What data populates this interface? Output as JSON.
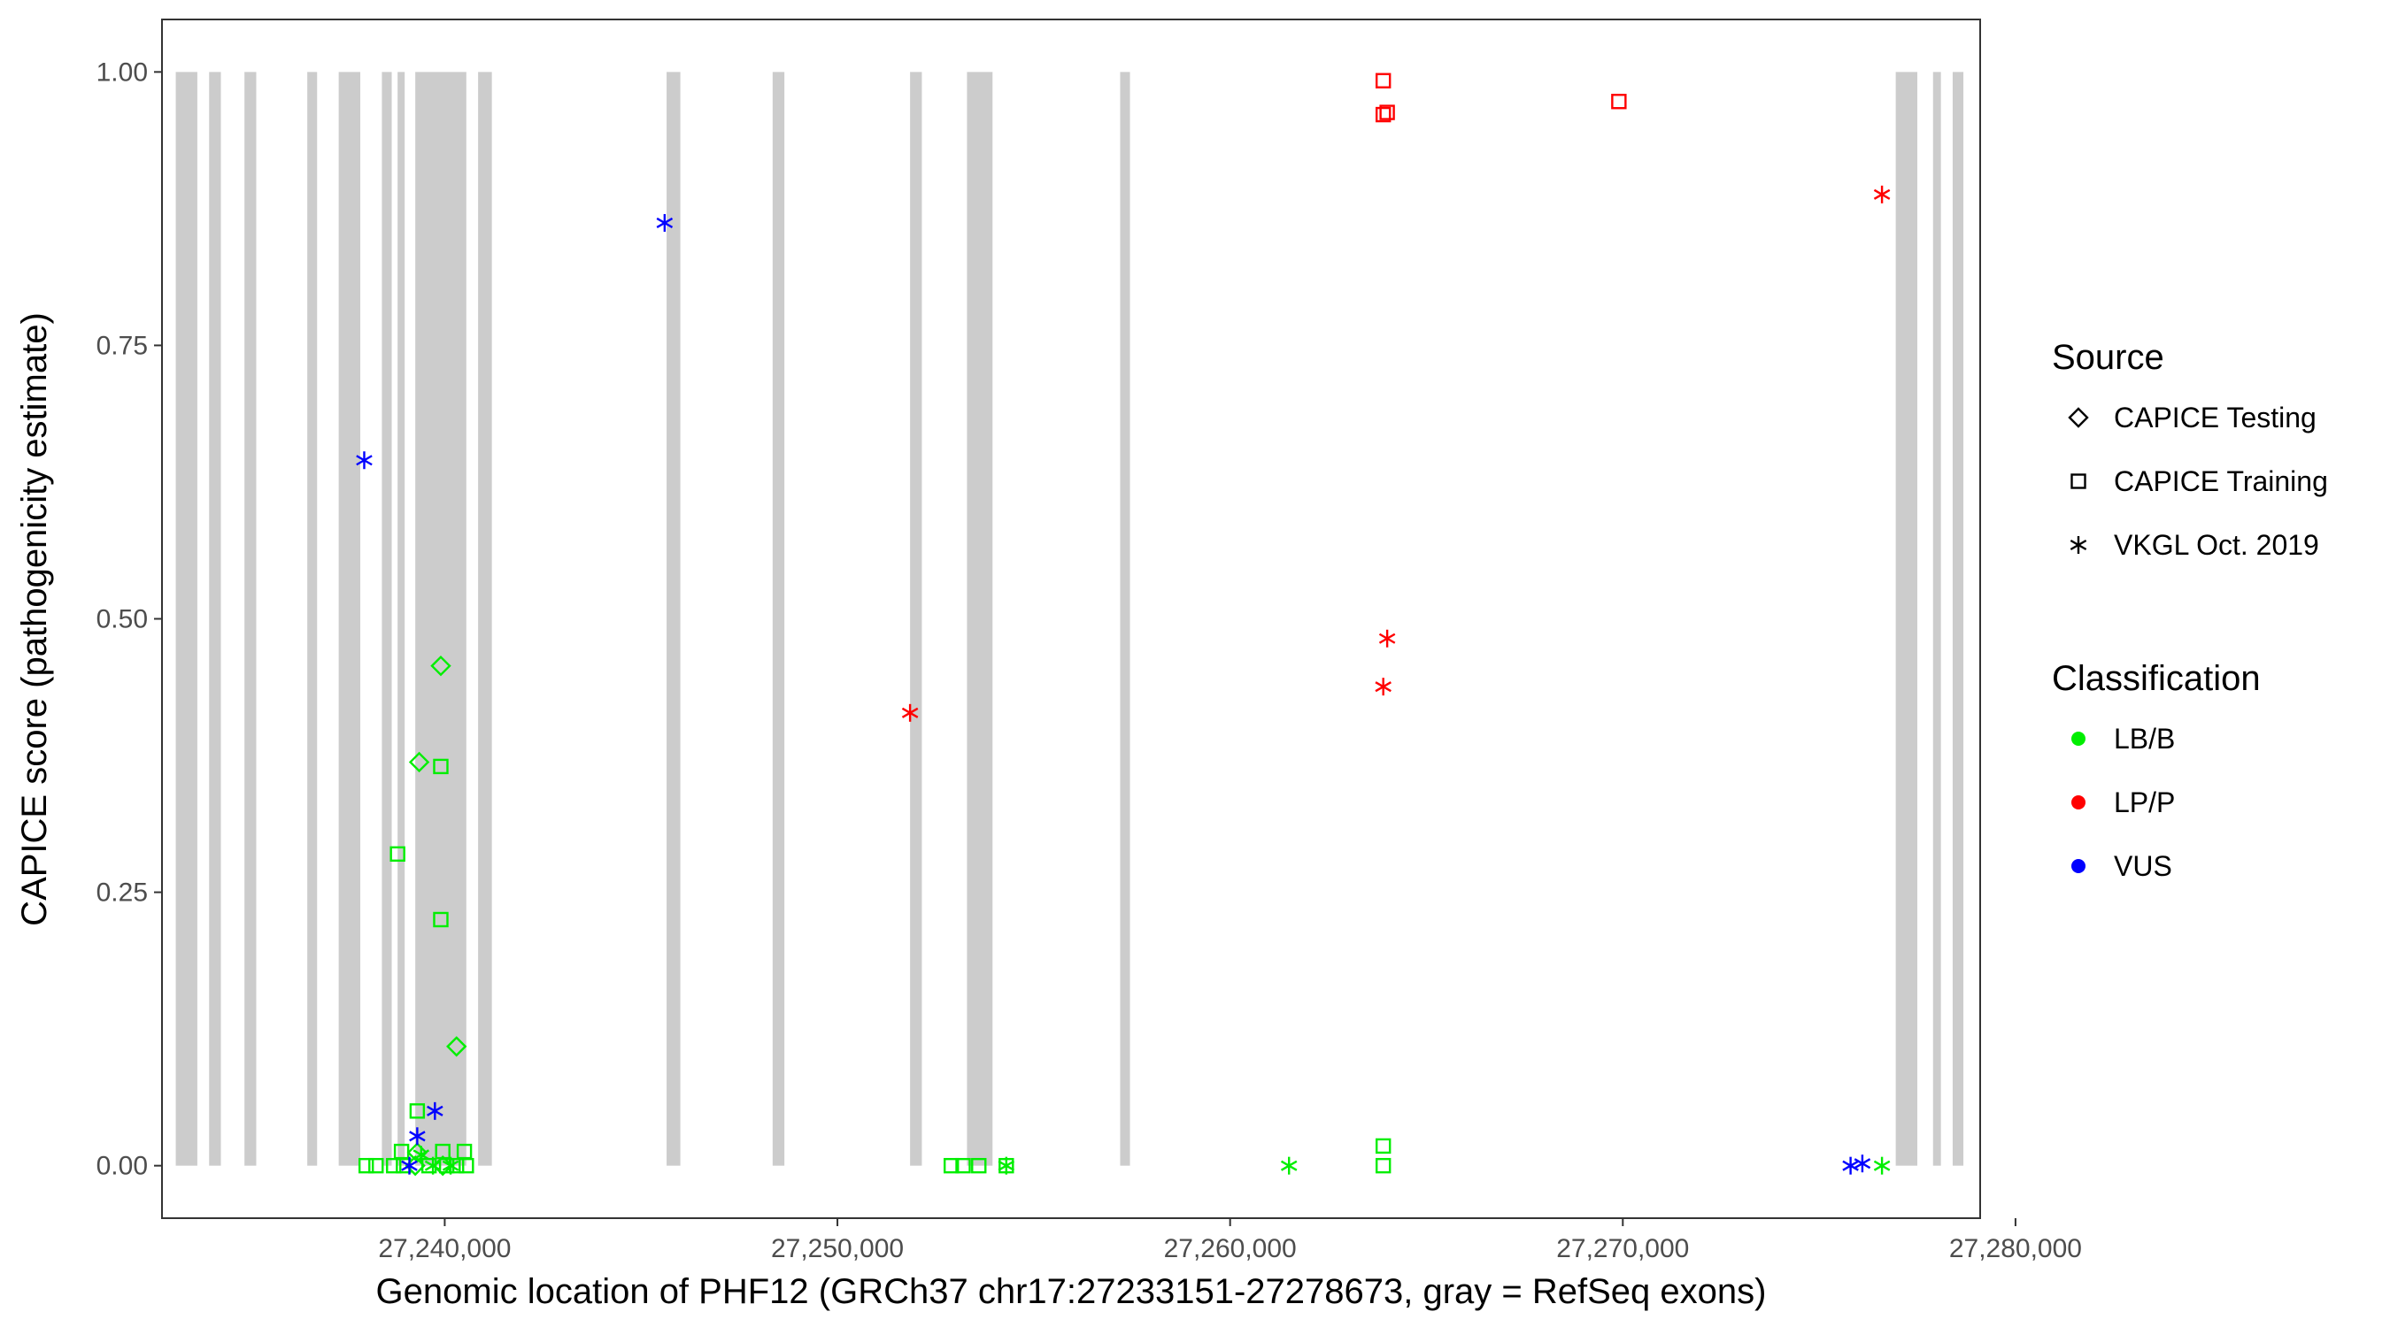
{
  "chart_data": {
    "type": "scatter",
    "title": "",
    "xlabel": "Genomic location of PHF12 (GRCh37 chr17:27233151-27278673, gray = RefSeq exons)",
    "ylabel": "CAPICE score (pathogenicity estimate)",
    "xlim": [
      27232800,
      27279100
    ],
    "ylim": [
      -0.048,
      1.048
    ],
    "x_ticks": [
      27240000,
      27250000,
      27260000,
      27270000,
      27280000
    ],
    "x_tick_labels": [
      "27,240,000",
      "27,250,000",
      "27,260,000",
      "27,270,000",
      "27,280,000"
    ],
    "y_ticks": [
      0,
      0.25,
      0.5,
      0.75,
      1.0
    ],
    "y_tick_labels": [
      "0.00",
      "0.25",
      "0.50",
      "0.75",
      "1.00"
    ],
    "grid": false,
    "exon_color": "#cccccc",
    "exons": [
      [
        27233151,
        27233700
      ],
      [
        27234000,
        27234300
      ],
      [
        27234900,
        27235200
      ],
      [
        27236500,
        27236750
      ],
      [
        27237300,
        27237850
      ],
      [
        27238400,
        27238650
      ],
      [
        27238800,
        27238950
      ],
      [
        27239250,
        27240550
      ],
      [
        27240850,
        27241200
      ],
      [
        27245650,
        27246000
      ],
      [
        27248350,
        27248650
      ],
      [
        27251850,
        27252150
      ],
      [
        27253300,
        27253950
      ],
      [
        27257200,
        27257450
      ],
      [
        27276950,
        27277500
      ],
      [
        27277900,
        27278100
      ],
      [
        27278400,
        27278673
      ]
    ],
    "legend": {
      "placement": "right",
      "source_title": "Source",
      "source_entries": [
        {
          "label": "CAPICE Testing",
          "shape": "diamond"
        },
        {
          "label": "CAPICE Training",
          "shape": "square"
        },
        {
          "label": "VKGL Oct. 2019",
          "shape": "asterisk"
        }
      ],
      "class_title": "Classification",
      "class_entries": [
        {
          "label": "LB/B",
          "color": "#00ee00"
        },
        {
          "label": "LP/P",
          "color": "#ff0000"
        },
        {
          "label": "VUS",
          "color": "#0000ff"
        }
      ]
    },
    "series": [
      {
        "name": "CAPICE Training",
        "shape": "square",
        "points": [
          {
            "x": 27263900,
            "y": 0.992,
            "class": "LP/P"
          },
          {
            "x": 27263900,
            "y": 0.961,
            "class": "LP/P"
          },
          {
            "x": 27264000,
            "y": 0.963,
            "class": "LP/P"
          },
          {
            "x": 27269900,
            "y": 0.973,
            "class": "LP/P"
          },
          {
            "x": 27239900,
            "y": 0.365,
            "class": "LB/B"
          },
          {
            "x": 27238800,
            "y": 0.285,
            "class": "LB/B"
          },
          {
            "x": 27239900,
            "y": 0.225,
            "class": "LB/B"
          },
          {
            "x": 27239300,
            "y": 0.05,
            "class": "LB/B"
          },
          {
            "x": 27238900,
            "y": 0.013,
            "class": "LB/B"
          },
          {
            "x": 27239950,
            "y": 0.013,
            "class": "LB/B"
          },
          {
            "x": 27240500,
            "y": 0.013,
            "class": "LB/B"
          },
          {
            "x": 27263900,
            "y": 0.018,
            "class": "LB/B"
          },
          {
            "x": 27263900,
            "y": 0.0,
            "class": "LB/B"
          },
          {
            "x": 27238000,
            "y": 0.0,
            "class": "LB/B"
          },
          {
            "x": 27238250,
            "y": 0.0,
            "class": "LB/B"
          },
          {
            "x": 27238700,
            "y": 0.0,
            "class": "LB/B"
          },
          {
            "x": 27238950,
            "y": 0.0,
            "class": "LB/B"
          },
          {
            "x": 27239600,
            "y": 0.0,
            "class": "LB/B"
          },
          {
            "x": 27240050,
            "y": 0.0,
            "class": "LB/B"
          },
          {
            "x": 27240300,
            "y": 0.0,
            "class": "LB/B"
          },
          {
            "x": 27240550,
            "y": 0.0,
            "class": "LB/B"
          },
          {
            "x": 27252900,
            "y": 0.0,
            "class": "LB/B"
          },
          {
            "x": 27253200,
            "y": 0.0,
            "class": "LB/B"
          },
          {
            "x": 27253600,
            "y": 0.0,
            "class": "LB/B"
          },
          {
            "x": 27254300,
            "y": 0.0,
            "class": "LB/B"
          }
        ]
      },
      {
        "name": "CAPICE Testing",
        "shape": "diamond",
        "points": [
          {
            "x": 27239900,
            "y": 0.457,
            "class": "LB/B"
          },
          {
            "x": 27239350,
            "y": 0.369,
            "class": "LB/B"
          },
          {
            "x": 27240300,
            "y": 0.109,
            "class": "LB/B"
          },
          {
            "x": 27239300,
            "y": 0.012,
            "class": "LB/B"
          },
          {
            "x": 27239250,
            "y": 0.0,
            "class": "LB/B"
          },
          {
            "x": 27239950,
            "y": 0.0,
            "class": "LB/B"
          }
        ]
      },
      {
        "name": "VKGL Oct. 2019",
        "shape": "asterisk",
        "points": [
          {
            "x": 27245600,
            "y": 0.862,
            "class": "VUS"
          },
          {
            "x": 27237950,
            "y": 0.645,
            "class": "VUS"
          },
          {
            "x": 27239750,
            "y": 0.05,
            "class": "VUS"
          },
          {
            "x": 27239300,
            "y": 0.027,
            "class": "VUS"
          },
          {
            "x": 27239100,
            "y": 0.0,
            "class": "VUS"
          },
          {
            "x": 27275800,
            "y": 0.0,
            "class": "VUS"
          },
          {
            "x": 27276100,
            "y": 0.002,
            "class": "VUS"
          },
          {
            "x": 27276600,
            "y": 0.888,
            "class": "LP/P"
          },
          {
            "x": 27264000,
            "y": 0.482,
            "class": "LP/P"
          },
          {
            "x": 27263900,
            "y": 0.438,
            "class": "LP/P"
          },
          {
            "x": 27251850,
            "y": 0.414,
            "class": "LP/P"
          },
          {
            "x": 27239400,
            "y": 0.01,
            "class": "LB/B"
          },
          {
            "x": 27239700,
            "y": 0.0,
            "class": "LB/B"
          },
          {
            "x": 27240150,
            "y": 0.0,
            "class": "LB/B"
          },
          {
            "x": 27254300,
            "y": 0.0,
            "class": "LB/B"
          },
          {
            "x": 27261500,
            "y": 0.0,
            "class": "LB/B"
          },
          {
            "x": 27276600,
            "y": 0.0,
            "class": "LB/B"
          }
        ]
      }
    ]
  }
}
